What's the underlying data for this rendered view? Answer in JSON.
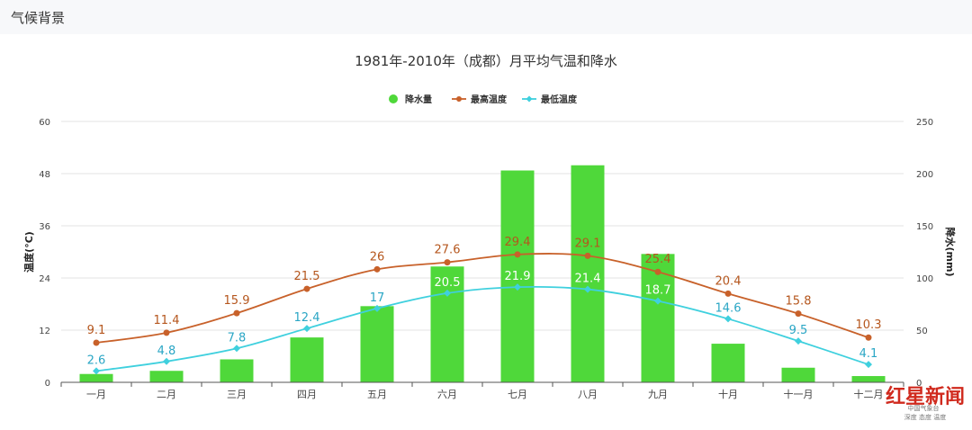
{
  "tab": {
    "label": "气候背景"
  },
  "chart_data": {
    "type": "bar+line",
    "title": "1981年-2010年（成都）月平均气温和降水",
    "legend_position": "top-center",
    "categories": [
      "一月",
      "二月",
      "三月",
      "四月",
      "五月",
      "六月",
      "七月",
      "八月",
      "九月",
      "十月",
      "十一月",
      "十二月"
    ],
    "series": [
      {
        "name": "降水量",
        "type": "bar",
        "axis": "right",
        "color": "#4fd83a",
        "values": [
          8,
          11,
          22,
          43,
          73,
          111,
          203,
          208,
          123,
          37,
          14,
          6
        ]
      },
      {
        "name": "最高温度",
        "type": "line",
        "axis": "left",
        "color": "#c8612a",
        "values": [
          9.1,
          11.4,
          15.9,
          21.5,
          26,
          27.6,
          29.4,
          29.1,
          25.4,
          20.4,
          15.8,
          10.3
        ]
      },
      {
        "name": "最低温度",
        "type": "line",
        "axis": "left",
        "color": "#3fd0de",
        "values": [
          2.6,
          4.8,
          7.8,
          12.4,
          17,
          20.5,
          21.9,
          21.4,
          18.7,
          14.6,
          9.5,
          4.1
        ]
      }
    ],
    "y_left": {
      "label": "温度(°C)",
      "ylim": [
        0,
        60
      ],
      "ticks": [
        0,
        12,
        24,
        36,
        48,
        60
      ]
    },
    "y_right": {
      "label": "降水(mm)",
      "ylim": [
        0,
        250
      ],
      "ticks": [
        0,
        50,
        100,
        150,
        200,
        250
      ]
    },
    "grid": true
  },
  "watermark": {
    "main": "红星新闻",
    "sub": "中国气象台",
    "tagline": "深度 态度 温度"
  }
}
